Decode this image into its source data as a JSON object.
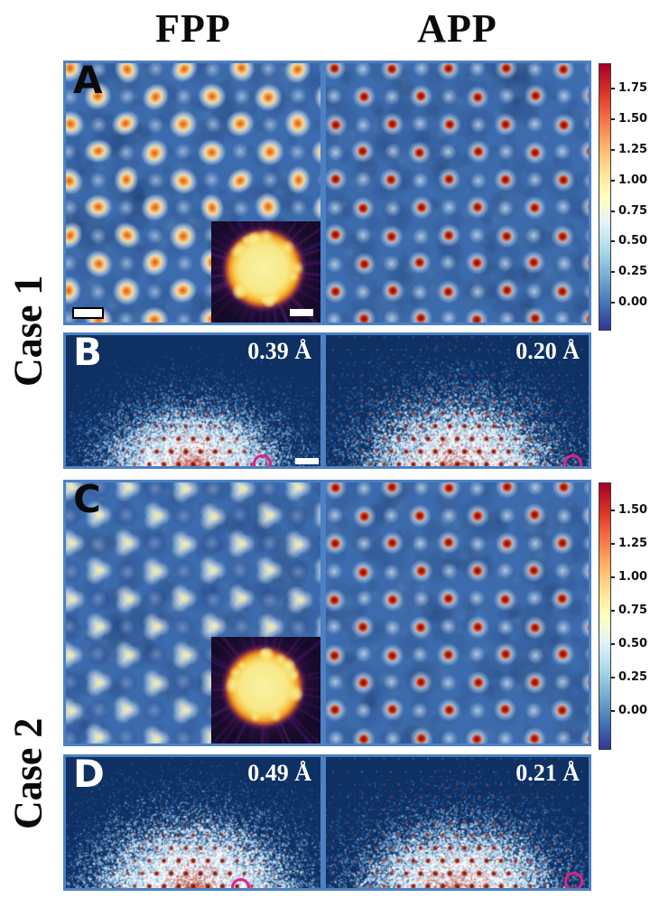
{
  "headers": {
    "left": "FPP",
    "right": "APP"
  },
  "rows": {
    "case1": "Case 1",
    "case2": "Case 2"
  },
  "panels": {
    "A": {
      "letter": "A"
    },
    "B": {
      "letter": "B",
      "left_resolution": "0.39 Å",
      "right_resolution": "0.20 Å"
    },
    "C": {
      "letter": "C"
    },
    "D": {
      "letter": "D",
      "left_resolution": "0.49 Å",
      "right_resolution": "0.21 Å"
    }
  },
  "colorbars": [
    {
      "id": "cb-1",
      "tick_labels": [
        "1.75",
        "1.50",
        "1.25",
        "1.00",
        "0.75",
        "0.50",
        "0.25",
        "0.00"
      ],
      "tick_values": [
        1.75,
        1.5,
        1.25,
        1.0,
        0.75,
        0.5,
        0.25,
        0.0
      ],
      "vmin": -0.23,
      "vmax": 1.96
    },
    {
      "id": "cb-2",
      "tick_labels": [
        "1.50",
        "1.25",
        "1.00",
        "0.75",
        "0.50",
        "0.25",
        "0.00"
      ],
      "tick_values": [
        1.5,
        1.25,
        1.0,
        0.75,
        0.5,
        0.25,
        0.0
      ],
      "vmin": -0.29,
      "vmax": 1.71
    }
  ],
  "colormap_stops": [
    "#a50026",
    "#d73027",
    "#f46d43",
    "#fdae61",
    "#fee090",
    "#ffffbf",
    "#e0f3f8",
    "#abd9e9",
    "#74add1",
    "#4575b4",
    "#313695"
  ],
  "colors": {
    "frame_blue": "#4d81c3",
    "panel_navy": "#0e3063",
    "lattice_background": "#3d6cae",
    "aperture_circle": "#e0218a",
    "scale_bar": "#ffffff"
  }
}
